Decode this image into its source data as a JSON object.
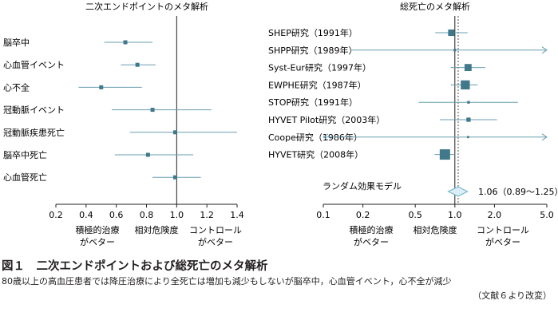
{
  "chart_data": [
    {
      "type": "forest",
      "title": "二次エンドポイントのメタ解析",
      "xlabel": "相対危険度",
      "xlim": [
        0.2,
        1.4
      ],
      "xscale": "linear",
      "xticks": [
        "0.2",
        "0.4",
        "0.6",
        "0.8",
        "1.0",
        "1.2",
        "1.4"
      ],
      "reference_line": 1.0,
      "left_note": [
        "積極的治療",
        "がベター"
      ],
      "right_note": [
        "コントロール",
        "がベター"
      ],
      "rows": [
        {
          "label": "脳卒中",
          "estimate": 0.66,
          "ci": [
            0.52,
            0.84
          ]
        },
        {
          "label": "心血管イベント",
          "estimate": 0.74,
          "ci": [
            0.63,
            0.86
          ]
        },
        {
          "label": "心不全",
          "estimate": 0.5,
          "ci": [
            0.35,
            0.77
          ]
        },
        {
          "label": "冠動脈イベント",
          "estimate": 0.84,
          "ci": [
            0.57,
            1.23
          ]
        },
        {
          "label": "冠動脈疾患死亡",
          "estimate": 0.99,
          "ci": [
            0.69,
            1.41
          ]
        },
        {
          "label": "脳卒中死亡",
          "estimate": 0.81,
          "ci": [
            0.59,
            1.11
          ]
        },
        {
          "label": "心血管死亡",
          "estimate": 0.99,
          "ci": [
            0.84,
            1.16
          ]
        }
      ]
    },
    {
      "type": "forest",
      "title": "総死亡のメタ解析",
      "xlabel": "相対危険度",
      "xlim": [
        0.1,
        5.0
      ],
      "xscale": "log",
      "xticks": [
        "0.1",
        "0.2",
        "0.5",
        "1.0",
        "2.0",
        "5.0"
      ],
      "reference_line": 1.0,
      "left_note": [
        "積極的治療",
        "がベター"
      ],
      "right_note": [
        "コントロール",
        "がベター"
      ],
      "rows": [
        {
          "label": "SHEP研究（1991年）",
          "estimate": 0.94,
          "ci": [
            0.71,
            1.25
          ],
          "weight": 0.55
        },
        {
          "label": "SHPP研究（1989年）",
          "estimate": 1.0,
          "ci": [
            0.16,
            5.0
          ],
          "weight": 0.1,
          "arrow_right": true
        },
        {
          "label": "Syst-Eur研究（1997年）",
          "estimate": 1.26,
          "ci": [
            0.93,
            1.7
          ],
          "weight": 0.62
        },
        {
          "label": "EWPHE研究（1987年）",
          "estimate": 1.2,
          "ci": [
            0.93,
            1.49
          ],
          "weight": 0.85
        },
        {
          "label": "STOP研究（1991年）",
          "estimate": 1.27,
          "ci": [
            0.53,
            3.02
          ],
          "weight": 0.12
        },
        {
          "label": "HYVET Pilot研究（2003年）",
          "estimate": 1.27,
          "ci": [
            0.77,
            2.09
          ],
          "weight": 0.3
        },
        {
          "label": "Coope研究（1986年）",
          "estimate": 1.26,
          "ci": [
            0.1,
            5.0
          ],
          "weight": 0.06,
          "arrow_left": true,
          "arrow_right": true
        },
        {
          "label": "HYVET研究（2008年）",
          "estimate": 0.84,
          "ci": [
            0.7,
            1.0
          ],
          "weight": 1.0
        }
      ],
      "pooled": {
        "label": "ランダム効果モデル",
        "estimate": 1.06,
        "ci": [
          0.89,
          1.25
        ],
        "text": "1.06（0.89〜1.25）"
      }
    }
  ],
  "caption": {
    "title": "図１　二次エンドポイントおよび総死亡のメタ解析",
    "body": "80歳以上の高血圧患者では降圧治療により全死亡は増加も減少もしないが脳卒中，心血管イベント，心不全が減少",
    "source": "（文献６より改変）"
  },
  "colors": {
    "marker": "#41788b",
    "ci_line": "#6a9db0",
    "axis": "#231f20",
    "diamond_fill": "#d9eef5",
    "diamond_stroke": "#6fb2c8"
  }
}
